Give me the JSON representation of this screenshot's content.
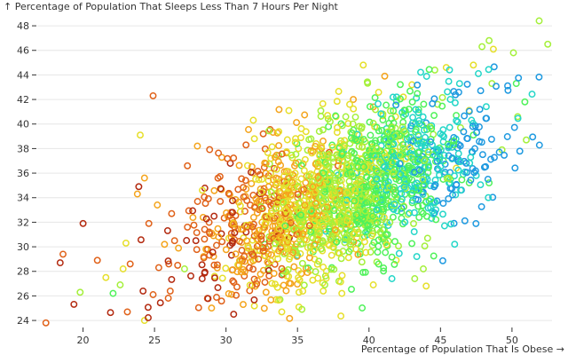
{
  "chart_data": {
    "type": "scatter",
    "title": "",
    "xlabel": "Percentage of Population That Is Obese →",
    "ylabel": "↑ Percentage of Population That Sleeps Less Than 7 Hours Per Night",
    "xlim": [
      16.8,
      52.8
    ],
    "ylim": [
      23.5,
      48.8
    ],
    "xticks": [
      20,
      25,
      30,
      35,
      40,
      45,
      50
    ],
    "yticks": [
      24,
      26,
      28,
      30,
      32,
      34,
      36,
      38,
      40,
      42,
      44,
      46,
      48
    ],
    "grid": "horizontal",
    "legend": "none",
    "marker": "open-circle",
    "color_scale": [
      "#1f9ae0",
      "#24d6c8",
      "#4ff25a",
      "#a4f03a",
      "#e6df2a",
      "#f4a41c",
      "#e0621a",
      "#b32a10"
    ],
    "points": [
      {
        "x": 17.4,
        "y": 23.8,
        "c": 0.8
      },
      {
        "x": 18.6,
        "y": 29.4,
        "c": 0.9
      },
      {
        "x": 18.4,
        "y": 28.7,
        "c": 0.95
      },
      {
        "x": 20.0,
        "y": 31.9,
        "c": 0.95
      },
      {
        "x": 21.0,
        "y": 28.9,
        "c": 0.85
      },
      {
        "x": 19.8,
        "y": 26.3,
        "c": 0.4
      },
      {
        "x": 21.6,
        "y": 27.5,
        "c": 0.6
      },
      {
        "x": 22.6,
        "y": 26.9,
        "c": 0.45
      },
      {
        "x": 22.8,
        "y": 28.2,
        "c": 0.55
      },
      {
        "x": 23.3,
        "y": 28.6,
        "c": 0.9
      },
      {
        "x": 24.0,
        "y": 39.1,
        "c": 0.55
      },
      {
        "x": 23.9,
        "y": 34.9,
        "c": 0.95
      },
      {
        "x": 23.8,
        "y": 34.3,
        "c": 0.75
      },
      {
        "x": 24.3,
        "y": 35.6,
        "c": 0.65
      },
      {
        "x": 24.9,
        "y": 42.3,
        "c": 0.9
      },
      {
        "x": 24.3,
        "y": 24.0,
        "c": 0.55
      },
      {
        "x": 23.1,
        "y": 24.7,
        "c": 0.8
      },
      {
        "x": 24.9,
        "y": 26.1,
        "c": 0.85
      },
      {
        "x": 25.3,
        "y": 28.3,
        "c": 0.9
      },
      {
        "x": 26.0,
        "y": 28.6,
        "c": 0.8
      },
      {
        "x": 26.1,
        "y": 26.4,
        "c": 0.9
      },
      {
        "x": 26.4,
        "y": 30.5,
        "c": 0.85
      },
      {
        "x": 27.3,
        "y": 36.6,
        "c": 0.9
      },
      {
        "x": 28.0,
        "y": 38.2,
        "c": 0.75
      },
      {
        "x": 28.7,
        "y": 25.8,
        "c": 0.8
      },
      {
        "x": 30.3,
        "y": 36.8,
        "c": 0.95
      },
      {
        "x": 31.4,
        "y": 38.3,
        "c": 0.9
      },
      {
        "x": 32.6,
        "y": 39.2,
        "c": 0.8
      },
      {
        "x": 31.2,
        "y": 25.3,
        "c": 0.7
      },
      {
        "x": 33.9,
        "y": 24.7,
        "c": 0.6
      },
      {
        "x": 35.1,
        "y": 25.1,
        "c": 0.55
      },
      {
        "x": 32.8,
        "y": 26.3,
        "c": 0.65
      },
      {
        "x": 34.0,
        "y": 27.8,
        "c": 0.3
      },
      {
        "x": 36.8,
        "y": 26.4,
        "c": 0.5
      },
      {
        "x": 38.1,
        "y": 26.2,
        "c": 0.55
      },
      {
        "x": 39.6,
        "y": 44.8,
        "c": 0.6
      },
      {
        "x": 41.1,
        "y": 43.9,
        "c": 0.75
      },
      {
        "x": 43.0,
        "y": 43.2,
        "c": 0.5
      },
      {
        "x": 44.6,
        "y": 44.4,
        "c": 0.45
      },
      {
        "x": 45.4,
        "y": 44.6,
        "c": 0.55
      },
      {
        "x": 47.3,
        "y": 44.8,
        "c": 0.6
      },
      {
        "x": 47.9,
        "y": 46.3,
        "c": 0.45
      },
      {
        "x": 48.4,
        "y": 46.8,
        "c": 0.4
      },
      {
        "x": 48.7,
        "y": 46.1,
        "c": 0.5
      },
      {
        "x": 50.1,
        "y": 45.8,
        "c": 0.4
      },
      {
        "x": 51.9,
        "y": 48.4,
        "c": 0.4
      },
      {
        "x": 52.5,
        "y": 46.5,
        "c": 0.45
      },
      {
        "x": 50.9,
        "y": 41.8,
        "c": 0.35
      },
      {
        "x": 50.3,
        "y": 43.3,
        "c": 0.35
      },
      {
        "x": 50.4,
        "y": 40.6,
        "c": 0.4
      },
      {
        "x": 51.0,
        "y": 38.7,
        "c": 0.45
      },
      {
        "x": 49.3,
        "y": 37.9,
        "c": 0.4
      },
      {
        "x": 48.6,
        "y": 43.3,
        "c": 0.4
      },
      {
        "x": 47.3,
        "y": 39.1,
        "c": 0.3
      },
      {
        "x": 48.4,
        "y": 35.2,
        "c": 0.35
      },
      {
        "x": 47.5,
        "y": 35.8,
        "c": 0.2
      },
      {
        "x": 45.6,
        "y": 35.2,
        "c": 0.2
      },
      {
        "x": 46.1,
        "y": 36.4,
        "c": 0.55
      },
      {
        "x": 44.1,
        "y": 30.7,
        "c": 0.4
      },
      {
        "x": 43.8,
        "y": 28.2,
        "c": 0.45
      },
      {
        "x": 43.2,
        "y": 27.4,
        "c": 0.4
      },
      {
        "x": 44.0,
        "y": 26.8,
        "c": 0.5
      },
      {
        "x": 41.9,
        "y": 28.9,
        "c": 0.55
      },
      {
        "x": 41.6,
        "y": 27.4,
        "c": 0.15
      },
      {
        "x": 40.3,
        "y": 26.9,
        "c": 0.55
      },
      {
        "x": 37.9,
        "y": 27.2,
        "c": 0.45
      },
      {
        "x": 38.6,
        "y": 29.6,
        "c": 0.3
      },
      {
        "x": 37.4,
        "y": 28.3,
        "c": 0.25
      },
      {
        "x": 35.0,
        "y": 29.3,
        "c": 0.2
      },
      {
        "x": 32.7,
        "y": 30.2,
        "c": 0.25
      },
      {
        "x": 36.1,
        "y": 29.6,
        "c": 0.35
      },
      {
        "x": 33.6,
        "y": 31.4,
        "c": 0.3
      },
      {
        "x": 41.3,
        "y": 31.0,
        "c": 0.35
      },
      {
        "x": 43.5,
        "y": 32.4,
        "c": 0.3
      },
      {
        "x": 44.6,
        "y": 33.6,
        "c": 0.25
      },
      {
        "x": 41.2,
        "y": 35.2,
        "c": 0.2
      },
      {
        "x": 41.9,
        "y": 37.4,
        "c": 0.3
      },
      {
        "x": 42.8,
        "y": 38.9,
        "c": 0.25
      },
      {
        "x": 45.2,
        "y": 37.0,
        "c": 0.35
      },
      {
        "x": 46.4,
        "y": 39.7,
        "c": 0.45
      },
      {
        "x": 47.0,
        "y": 41.1,
        "c": 0.5
      },
      {
        "x": 44.8,
        "y": 41.6,
        "c": 0.4
      },
      {
        "x": 42.4,
        "y": 42.2,
        "c": 0.55
      },
      {
        "x": 40.3,
        "y": 41.4,
        "c": 0.7
      },
      {
        "x": 38.9,
        "y": 42.0,
        "c": 0.65
      },
      {
        "x": 37.7,
        "y": 40.6,
        "c": 0.6
      },
      {
        "x": 39.3,
        "y": 39.1,
        "c": 0.5
      },
      {
        "x": 36.3,
        "y": 38.4,
        "c": 0.6
      },
      {
        "x": 34.8,
        "y": 36.6,
        "c": 0.75
      },
      {
        "x": 33.5,
        "y": 35.6,
        "c": 0.7
      },
      {
        "x": 31.9,
        "y": 34.2,
        "c": 0.85
      },
      {
        "x": 29.6,
        "y": 33.7,
        "c": 0.8
      },
      {
        "x": 28.4,
        "y": 32.4,
        "c": 0.75
      },
      {
        "x": 27.3,
        "y": 31.6,
        "c": 0.9
      },
      {
        "x": 26.2,
        "y": 32.7,
        "c": 0.85
      },
      {
        "x": 25.2,
        "y": 33.4,
        "c": 0.65
      },
      {
        "x": 24.6,
        "y": 31.9,
        "c": 0.8
      },
      {
        "x": 25.7,
        "y": 30.2,
        "c": 0.7
      },
      {
        "x": 28.6,
        "y": 29.8,
        "c": 0.6
      },
      {
        "x": 30.2,
        "y": 30.7,
        "c": 0.55
      },
      {
        "x": 31.0,
        "y": 28.9,
        "c": 0.45
      },
      {
        "x": 29.2,
        "y": 27.6,
        "c": 0.6
      },
      {
        "x": 27.1,
        "y": 28.2,
        "c": 0.45
      },
      {
        "x": 23.0,
        "y": 30.3,
        "c": 0.5
      },
      {
        "x": 22.1,
        "y": 26.2,
        "c": 0.35
      },
      {
        "x": 38.8,
        "y": 34.6,
        "c": 0.45
      },
      {
        "x": 37.2,
        "y": 33.2,
        "c": 0.4
      },
      {
        "x": 39.9,
        "y": 36.2,
        "c": 0.3
      },
      {
        "x": 36.0,
        "y": 35.0,
        "c": 0.55
      },
      {
        "x": 40.7,
        "y": 33.0,
        "c": 0.25
      },
      {
        "x": 35.4,
        "y": 32.6,
        "c": 0.65
      }
    ]
  }
}
